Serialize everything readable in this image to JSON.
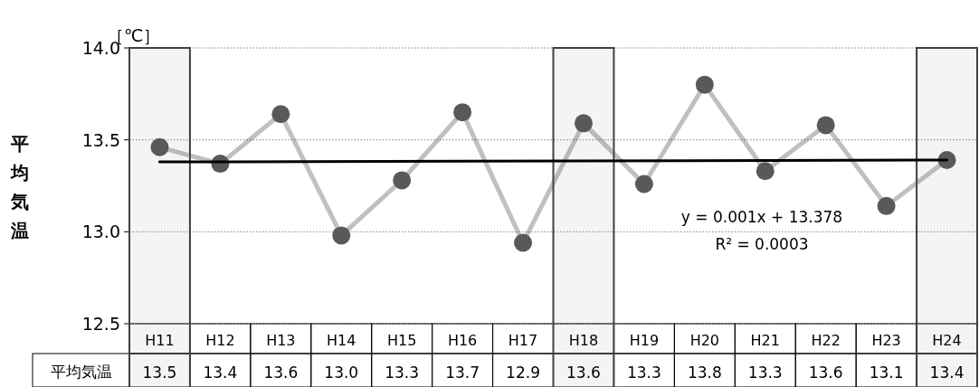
{
  "chart_data": {
    "type": "line",
    "ylabel": "平均気温",
    "categories": [
      "H11",
      "H12",
      "H13",
      "H14",
      "H15",
      "H16",
      "H17",
      "H18",
      "H19",
      "H20",
      "H21",
      "H22",
      "H23",
      "H24"
    ],
    "series": [
      {
        "name": "平均気温",
        "color": "#595959",
        "values": [
          13.46,
          13.37,
          13.64,
          12.98,
          13.28,
          13.65,
          12.94,
          13.59,
          13.26,
          13.8,
          13.33,
          13.58,
          13.14,
          13.39
        ],
        "value_labels": [
          "13.5",
          "13.4",
          "13.6",
          "13.0",
          "13.3",
          "13.7",
          "12.9",
          "13.6",
          "13.3",
          "13.8",
          "13.3",
          "13.6",
          "13.1",
          "13.4"
        ]
      },
      {
        "type": "line",
        "color": "#000000",
        "x": [
          "H11",
          "H24"
        ],
        "values": [
          13.38,
          13.39
        ],
        "marker": "none"
      }
    ],
    "marker": "circle",
    "ylim": [
      12.5,
      14.0
    ],
    "yticks": [
      {
        "value": 12.5,
        "label": "12.5"
      },
      {
        "value": 13.0,
        "label": "13.0"
      },
      {
        "value": 13.5,
        "label": "13.5"
      },
      {
        "value": 14.0,
        "label": "14.0"
      }
    ],
    "grid": "y",
    "bands": [
      {
        "axis": "x",
        "from": "H11",
        "to": "H11",
        "color": "#404040"
      },
      {
        "axis": "x",
        "from": "H18",
        "to": "H18",
        "color": "#404040"
      },
      {
        "axis": "x",
        "from": "H24",
        "to": "H24",
        "color": "#404040"
      }
    ],
    "annotations": [
      "［℃］",
      "y = 0.001x + 13.378",
      "R² = 0.0003"
    ]
  }
}
